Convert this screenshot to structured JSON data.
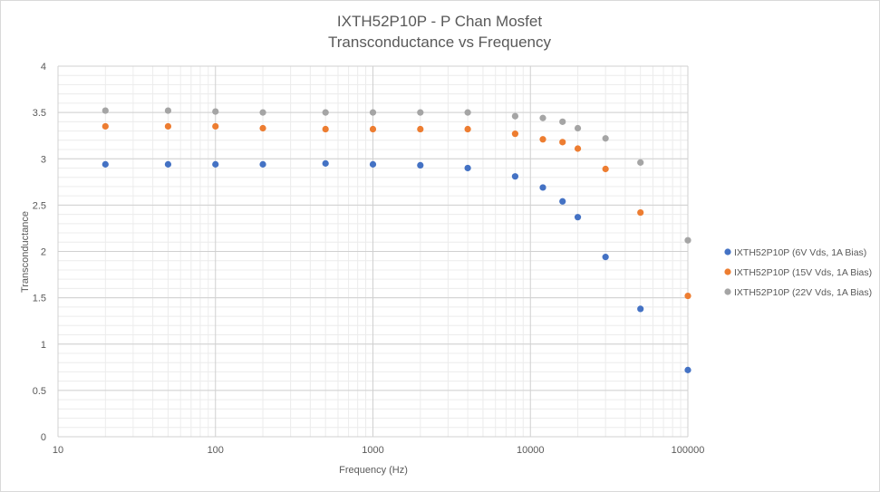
{
  "chart_data": {
    "type": "scatter",
    "title": "IXTH52P10P - P Chan Mosfet",
    "subtitle": "Transconductance vs Frequency",
    "xlabel": "Frequency (Hz)",
    "ylabel": "Transconductance",
    "x_scale": "log",
    "xlim": [
      10,
      100000
    ],
    "ylim": [
      0,
      4
    ],
    "x_ticks": [
      "10",
      "100",
      "1000",
      "10000",
      "100000"
    ],
    "y_ticks": [
      "0",
      "0.5",
      "1",
      "1.5",
      "2",
      "2.5",
      "3",
      "3.5",
      "4"
    ],
    "grid": true,
    "legend_position": "right",
    "series": [
      {
        "name": "IXTH52P10P (6V Vds, 1A Bias)",
        "color": "#4472C4",
        "x": [
          20,
          50,
          100,
          200,
          500,
          1000,
          2000,
          4000,
          8000,
          12000,
          16000,
          20000,
          30000,
          50000,
          100000
        ],
        "y": [
          2.94,
          2.94,
          2.94,
          2.94,
          2.95,
          2.94,
          2.93,
          2.9,
          2.81,
          2.69,
          2.54,
          2.37,
          1.94,
          1.38,
          0.72
        ]
      },
      {
        "name": "IXTH52P10P (15V Vds, 1A Bias)",
        "color": "#ED7D31",
        "x": [
          20,
          50,
          100,
          200,
          500,
          1000,
          2000,
          4000,
          8000,
          12000,
          16000,
          20000,
          30000,
          50000,
          100000
        ],
        "y": [
          3.35,
          3.35,
          3.35,
          3.33,
          3.32,
          3.32,
          3.32,
          3.32,
          3.27,
          3.21,
          3.18,
          3.11,
          2.89,
          2.42,
          1.52
        ]
      },
      {
        "name": "IXTH52P10P (22V Vds, 1A Bias)",
        "color": "#A5A5A5",
        "x": [
          20,
          50,
          100,
          200,
          500,
          1000,
          2000,
          4000,
          8000,
          12000,
          16000,
          20000,
          30000,
          50000,
          100000
        ],
        "y": [
          3.52,
          3.52,
          3.51,
          3.5,
          3.5,
          3.5,
          3.5,
          3.5,
          3.46,
          3.44,
          3.4,
          3.33,
          3.22,
          2.96,
          2.12
        ]
      }
    ]
  }
}
